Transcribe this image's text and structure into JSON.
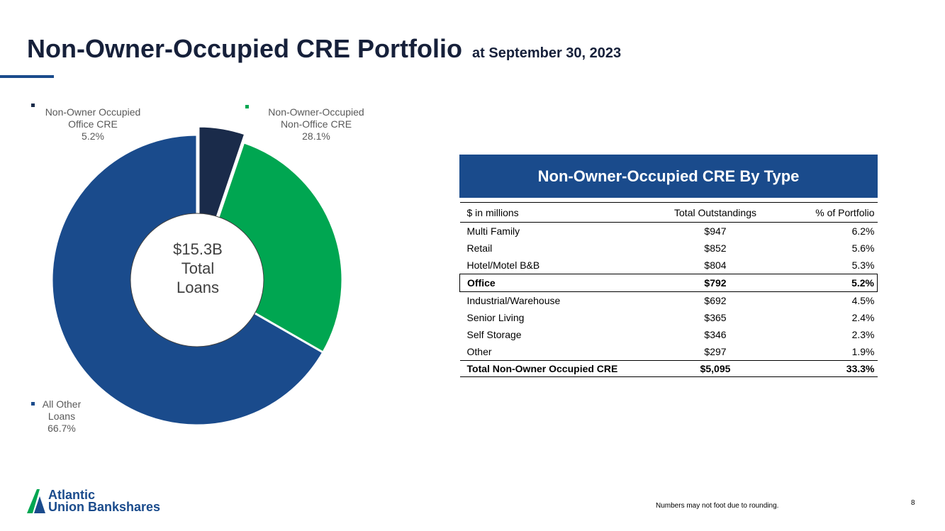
{
  "header": {
    "title": "Non-Owner-Occupied CRE Portfolio",
    "subtitle": "at September 30, 2023"
  },
  "chart_data": {
    "type": "pie",
    "donut": true,
    "center_text": [
      "$15.3B",
      "Total",
      "Loans"
    ],
    "slices": [
      {
        "label": [
          "Non-Owner Occupied",
          "Office CRE",
          "5.2%"
        ],
        "value": 5.2,
        "color": "#1a2b4a",
        "exploded": true
      },
      {
        "label": [
          "Non-Owner-Occupied",
          "Non-Office CRE",
          "28.1%"
        ],
        "value": 28.1,
        "color": "#00a651",
        "exploded": false
      },
      {
        "label": [
          "All Other",
          "Loans",
          "66.7%"
        ],
        "value": 66.7,
        "color": "#1a4b8c",
        "exploded": false
      }
    ]
  },
  "table": {
    "heading": "Non-Owner-Occupied CRE By Type",
    "columns": [
      "$ in millions",
      "Total Outstandings",
      "% of Portfolio"
    ],
    "rows": [
      {
        "type": "Multi Family",
        "amount": "$947",
        "pct": "6.2%"
      },
      {
        "type": "Retail",
        "amount": "$852",
        "pct": "5.6%"
      },
      {
        "type": "Hotel/Motel B&B",
        "amount": "$804",
        "pct": "5.3%"
      },
      {
        "type": "Office",
        "amount": "$792",
        "pct": "5.2%",
        "highlight": true
      },
      {
        "type": "Industrial/Warehouse",
        "amount": "$692",
        "pct": "4.5%"
      },
      {
        "type": "Senior Living",
        "amount": "$365",
        "pct": "2.4%"
      },
      {
        "type": "Self Storage",
        "amount": "$346",
        "pct": "2.3%"
      },
      {
        "type": "Other",
        "amount": "$297",
        "pct": "1.9%"
      }
    ],
    "total": {
      "type": "Total Non-Owner Occupied CRE",
      "amount": "$5,095",
      "pct": "33.3%"
    }
  },
  "footer": {
    "logo_line1": "Atlantic",
    "logo_line2": "Union Bankshares",
    "note": "Numbers may not foot due to rounding.",
    "page": "8"
  }
}
